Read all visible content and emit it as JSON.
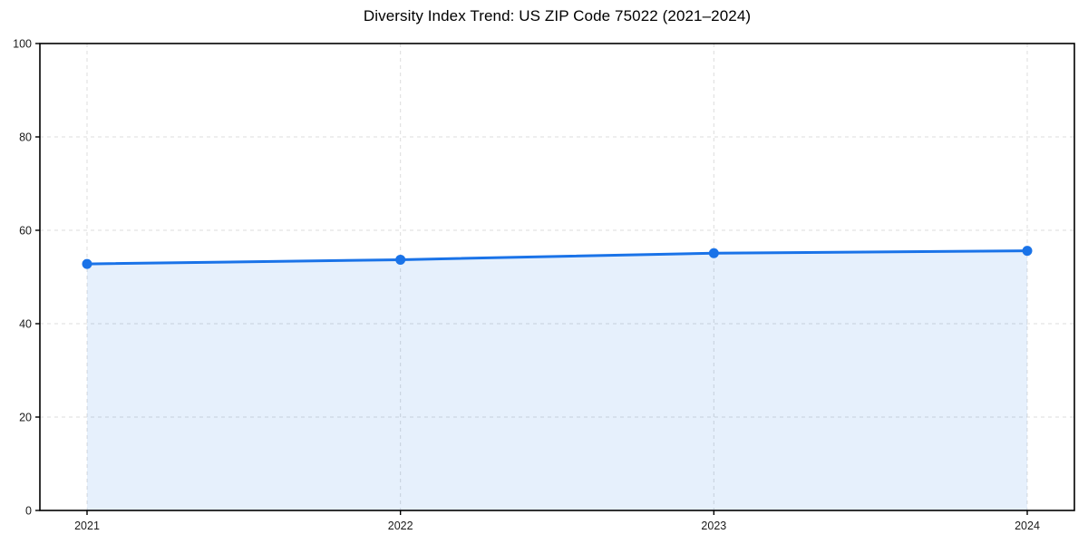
{
  "chart_data": {
    "type": "line",
    "title": "Diversity Index Trend: US ZIP Code 75022 (2021–2024)",
    "categories": [
      "2021",
      "2022",
      "2023",
      "2024"
    ],
    "series": [
      {
        "name": "Diversity Index",
        "values": [
          52.8,
          53.7,
          55.1,
          55.6
        ]
      }
    ],
    "xlabel": "",
    "ylabel": "",
    "ylim": [
      0,
      100
    ],
    "yticks": [
      0,
      20,
      40,
      60,
      80,
      100
    ],
    "grid": true,
    "grid_style": "dashed",
    "legend_position": "none",
    "area_fill": true,
    "marker": "circle",
    "colors": {
      "line": "#1a73e8",
      "marker": "#1a73e8",
      "area_fill": "rgba(26,115,232,0.11)",
      "grid": "#dcdcdc",
      "axis": "#000000",
      "tick_text": "#1a1a1a",
      "background": "#ffffff"
    }
  }
}
